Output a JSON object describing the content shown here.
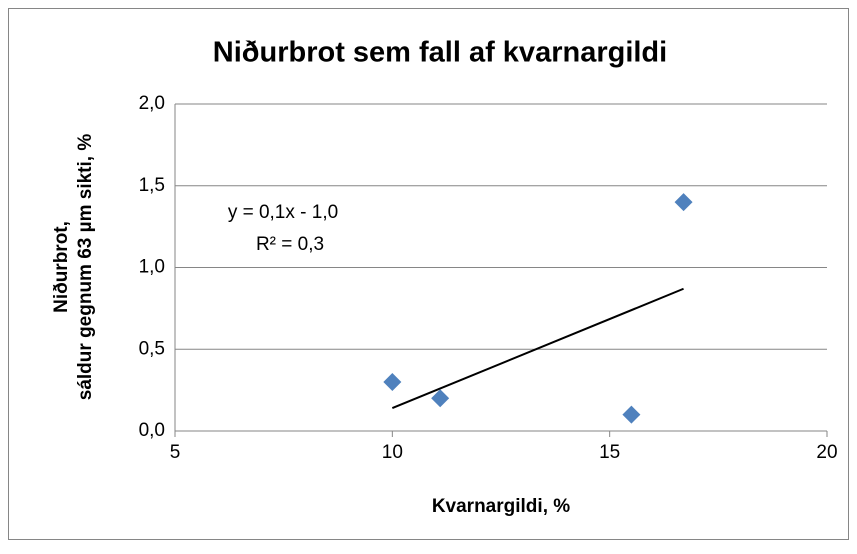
{
  "chart_data": {
    "type": "scatter",
    "title": "Niðurbrot sem fall af kvarnargildi",
    "xlabel": "Kvarnargildi, %",
    "ylabel": [
      "Niðurbrot,",
      "sáldur gegnum 63 µm sikti, %"
    ],
    "series": [
      {
        "color": "#4f81bd",
        "x": [
          10,
          11.1,
          15.5,
          16.7
        ],
        "values": [
          0.3,
          0.2,
          0.1,
          1.4
        ]
      }
    ],
    "trendline": {
      "color": "#000000",
      "x": [
        10,
        16.7
      ],
      "values": [
        0.14,
        0.87
      ]
    },
    "annotations": [
      "y = 0,1x - 1,0",
      "R² = 0,3"
    ],
    "xlim": [
      5,
      20
    ],
    "xticks": [
      5,
      10,
      15,
      20
    ],
    "ylim": [
      0,
      2
    ],
    "yticks": [
      {
        "value": 0,
        "label": "0,0"
      },
      {
        "value": 0.5,
        "label": "0,5"
      },
      {
        "value": 1,
        "label": "1,0"
      },
      {
        "value": 1.5,
        "label": "1,5"
      },
      {
        "value": 2,
        "label": "2,0"
      }
    ],
    "grid": true
  }
}
